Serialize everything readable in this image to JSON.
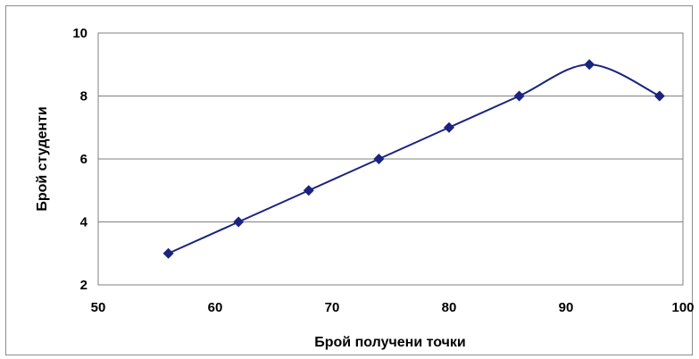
{
  "chart_data": {
    "type": "line",
    "title": "",
    "xlabel": "Брой получени точки",
    "ylabel": "Брой студенти",
    "xlim": [
      50,
      100
    ],
    "ylim": [
      2,
      10
    ],
    "x_ticks": [
      50,
      60,
      70,
      80,
      90,
      100
    ],
    "y_ticks": [
      2,
      4,
      6,
      8,
      10
    ],
    "grid": "horizontal",
    "smooth": true,
    "series": [
      {
        "color": "#1a237e",
        "marker": "diamond",
        "x": [
          56,
          62,
          68,
          74,
          80,
          86,
          92,
          98
        ],
        "y": [
          3,
          4,
          5,
          6,
          7,
          8,
          9,
          8
        ]
      }
    ]
  }
}
